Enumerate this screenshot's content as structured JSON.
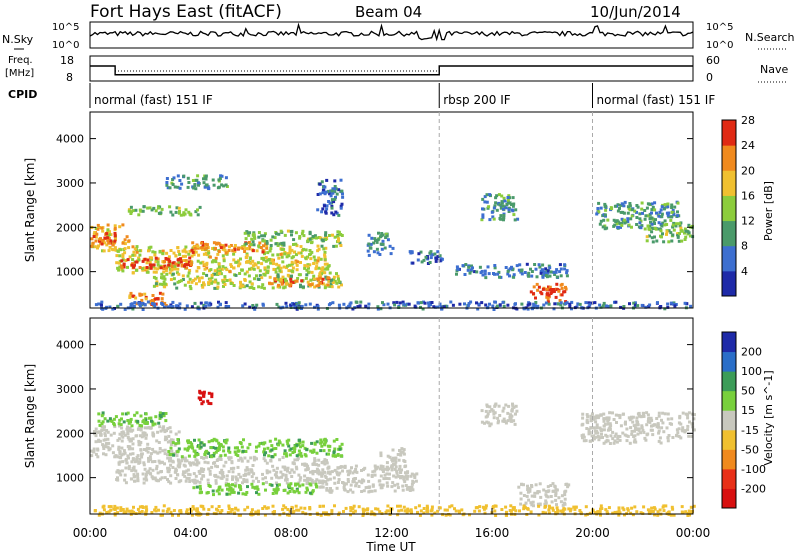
{
  "header": {
    "title": "Fort Hays East (fitACF)",
    "beam": "Beam 04",
    "date": "10/Jun/2014"
  },
  "noise_panel": {
    "left_label": "N.Sky",
    "left_top": "10^5",
    "left_bottom": "10^0",
    "right_label": "N.Search",
    "right_top": "10^5",
    "right_bottom": "10^0"
  },
  "freq_panel": {
    "left_label_1": "Freq.",
    "left_label_2": "[MHz]",
    "left_top": "18",
    "left_bottom": "8",
    "right_label": "Nave",
    "right_top": "60",
    "right_bottom": "0",
    "freq_values": [
      {
        "time": 0,
        "value": 14
      },
      {
        "time": 1,
        "value": 10.5
      },
      {
        "time": 13.9,
        "value": 14
      },
      {
        "time": 24,
        "value": 14
      }
    ],
    "nave_values": [
      {
        "time": 0,
        "value": 9
      },
      {
        "time": 1,
        "value": 6
      },
      {
        "time": 13.9,
        "value": 9
      },
      {
        "time": 24,
        "value": 9
      }
    ]
  },
  "cpid_panel": {
    "label": "CPID",
    "segments": [
      {
        "start": 0,
        "end": 13.9,
        "text": "normal (fast) 151 IF"
      },
      {
        "start": 13.9,
        "end": 20,
        "text": "rbsp 200 IF"
      },
      {
        "start": 20,
        "end": 24,
        "text": "normal (fast) 151 IF"
      }
    ]
  },
  "power_colorbar": {
    "label": "Power [dB]",
    "ticks": [
      "4",
      "8",
      "12",
      "16",
      "20",
      "24",
      "28"
    ],
    "colors": [
      "#1e2aa8",
      "#3d6fd0",
      "#4a9a6a",
      "#8ccc3c",
      "#f0c030",
      "#f08a1e",
      "#e02a14"
    ]
  },
  "velocity_colorbar": {
    "label": "Velocity [m s^-1]",
    "ticks": [
      "200",
      "100",
      "50",
      "15",
      "-15",
      "-50",
      "-100",
      "-200"
    ],
    "colors": [
      "#1e2aa8",
      "#2a6ec8",
      "#3c9c58",
      "#78d03c",
      "#c8c8be",
      "#f0c030",
      "#f08a1e",
      "#e83018",
      "#d81010"
    ]
  },
  "axes": {
    "ylabel": "Slant Range [km]",
    "xlabel": "Time UT",
    "yticks": [
      "1000",
      "2000",
      "3000",
      "4000"
    ],
    "xticks": [
      "00:00",
      "04:00",
      "08:00",
      "12:00",
      "16:00",
      "20:00",
      "00:00"
    ]
  },
  "chart_data": {
    "type": "heatmap",
    "title": "Fort Hays East (fitACF)",
    "xlabel": "Time UT",
    "ylabel": "Slant Range [km]",
    "xlim_hours": [
      0,
      24
    ],
    "ylim_km": [
      180,
      4600
    ],
    "power_patches": [
      {
        "t0": 0.0,
        "t1": 1.5,
        "r0": 1500,
        "r1": 2100,
        "power_db": 20
      },
      {
        "t0": 0.1,
        "t1": 1.0,
        "r0": 1650,
        "r1": 1900,
        "power_db": 26
      },
      {
        "t0": 1.5,
        "t1": 4.5,
        "r0": 2300,
        "r1": 2500,
        "power_db": 14
      },
      {
        "t0": 3.0,
        "t1": 5.5,
        "r0": 2900,
        "r1": 3200,
        "power_db": 10
      },
      {
        "t0": 1.0,
        "t1": 9.5,
        "r0": 1000,
        "r1": 1600,
        "power_db": 18
      },
      {
        "t0": 1.2,
        "t1": 4.0,
        "r0": 1100,
        "r1": 1350,
        "power_db": 27
      },
      {
        "t0": 4.0,
        "t1": 7.0,
        "r0": 1450,
        "r1": 1700,
        "power_db": 24
      },
      {
        "t0": 6.0,
        "t1": 10.0,
        "r0": 1600,
        "r1": 1950,
        "power_db": 14
      },
      {
        "t0": 2.5,
        "t1": 10.0,
        "r0": 650,
        "r1": 1000,
        "power_db": 16
      },
      {
        "t0": 7.0,
        "t1": 9.5,
        "r0": 700,
        "r1": 900,
        "power_db": 24
      },
      {
        "t0": 1.5,
        "t1": 3.0,
        "r0": 250,
        "r1": 550,
        "power_db": 24
      },
      {
        "t0": 9.0,
        "t1": 10.0,
        "r0": 2300,
        "r1": 3100,
        "power_db": 6
      },
      {
        "t0": 11.0,
        "t1": 12.0,
        "r0": 1400,
        "r1": 1900,
        "power_db": 10
      },
      {
        "t0": 12.5,
        "t1": 14.0,
        "r0": 1200,
        "r1": 1500,
        "power_db": 6
      },
      {
        "t0": 15.5,
        "t1": 17.0,
        "r0": 2200,
        "r1": 2800,
        "power_db": 10
      },
      {
        "t0": 14.5,
        "t1": 19.0,
        "r0": 900,
        "r1": 1200,
        "power_db": 8
      },
      {
        "t0": 17.5,
        "t1": 19.0,
        "r0": 350,
        "r1": 750,
        "power_db": 26
      },
      {
        "t0": 20.0,
        "t1": 23.5,
        "r0": 2000,
        "r1": 2600,
        "power_db": 10
      },
      {
        "t0": 22.0,
        "t1": 24.0,
        "r0": 1700,
        "r1": 2100,
        "power_db": 14
      },
      {
        "t0": 0.0,
        "t1": 24.0,
        "r0": 180,
        "r1": 350,
        "power_db": 6
      }
    ],
    "velocity_patches": [
      {
        "t0": 0.0,
        "t1": 3.5,
        "r0": 1500,
        "r1": 2200,
        "velocity": 0
      },
      {
        "t0": 0.2,
        "t1": 3.0,
        "r0": 2200,
        "r1": 2500,
        "velocity": 30
      },
      {
        "t0": 1.0,
        "t1": 9.5,
        "r0": 900,
        "r1": 1500,
        "velocity": 0
      },
      {
        "t0": 3.0,
        "t1": 10.0,
        "r0": 1500,
        "r1": 1900,
        "velocity": 30
      },
      {
        "t0": 4.2,
        "t1": 4.8,
        "r0": 2700,
        "r1": 3000,
        "velocity": -180
      },
      {
        "t0": 4.0,
        "t1": 9.0,
        "r0": 650,
        "r1": 900,
        "velocity": 30
      },
      {
        "t0": 9.0,
        "t1": 13.0,
        "r0": 700,
        "r1": 1300,
        "velocity": 0
      },
      {
        "t0": 11.5,
        "t1": 12.5,
        "r0": 1200,
        "r1": 1700,
        "velocity": 0
      },
      {
        "t0": 15.5,
        "t1": 17.0,
        "r0": 2200,
        "r1": 2700,
        "velocity": 0
      },
      {
        "t0": 17.0,
        "t1": 19.0,
        "r0": 400,
        "r1": 900,
        "velocity": 0
      },
      {
        "t0": 19.5,
        "t1": 24.0,
        "r0": 1800,
        "r1": 2500,
        "velocity": 0
      },
      {
        "t0": 0.0,
        "t1": 24.0,
        "r0": 180,
        "r1": 400,
        "velocity": -30
      }
    ]
  }
}
